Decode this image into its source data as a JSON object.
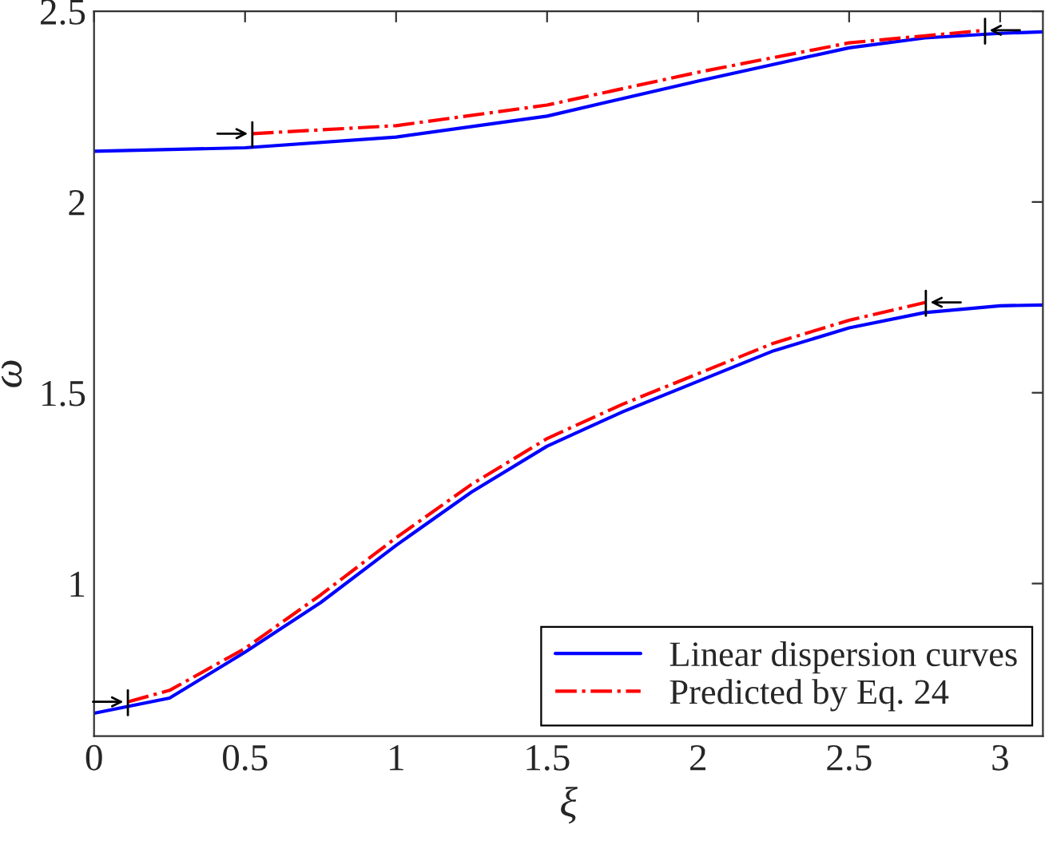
{
  "chart_data": {
    "type": "line",
    "xlabel": "ξ",
    "ylabel": "ω",
    "xlim": [
      0,
      3.1416
    ],
    "ylim": [
      0.6,
      2.5
    ],
    "xticks": [
      0,
      0.5,
      1,
      1.5,
      2,
      2.5,
      3
    ],
    "yticks": [
      1,
      1.5,
      2,
      2.5
    ],
    "grid": false,
    "legend": "bottom right",
    "series": [
      {
        "name": "Linear dispersion curves",
        "color": "#0000ff",
        "line_style": "solid",
        "x": [
          0,
          0.25,
          0.5,
          0.75,
          1.0,
          1.25,
          1.5,
          1.75,
          2.0,
          2.25,
          2.5,
          2.75,
          3.0,
          3.1416
        ],
        "values": [
          0.66,
          0.7,
          0.82,
          0.95,
          1.1,
          1.24,
          1.36,
          1.45,
          1.53,
          1.61,
          1.67,
          1.71,
          1.728,
          1.73
        ]
      },
      {
        "color": "#0000ff",
        "line_style": "solid",
        "x": [
          0,
          0.5,
          1.0,
          1.5,
          2.0,
          2.5,
          2.75,
          3.0,
          3.1416
        ],
        "values": [
          2.133,
          2.142,
          2.17,
          2.225,
          2.317,
          2.404,
          2.43,
          2.442,
          2.446
        ]
      },
      {
        "name": "Predicted by Eq. 24",
        "color": "#ff0000",
        "line_style": "dashdot",
        "x": [
          0.112,
          0.25,
          0.5,
          0.75,
          1.0,
          1.25,
          1.5,
          1.75,
          2.0,
          2.25,
          2.5,
          2.754
        ],
        "values": [
          0.69,
          0.72,
          0.83,
          0.97,
          1.12,
          1.26,
          1.38,
          1.47,
          1.55,
          1.63,
          1.69,
          1.737
        ]
      },
      {
        "color": "#ff0000",
        "line_style": "dashdot",
        "x": [
          0.524,
          1.0,
          1.5,
          2.0,
          2.5,
          2.95
        ],
        "values": [
          2.179,
          2.2,
          2.254,
          2.34,
          2.417,
          2.45
        ]
      }
    ]
  }
}
